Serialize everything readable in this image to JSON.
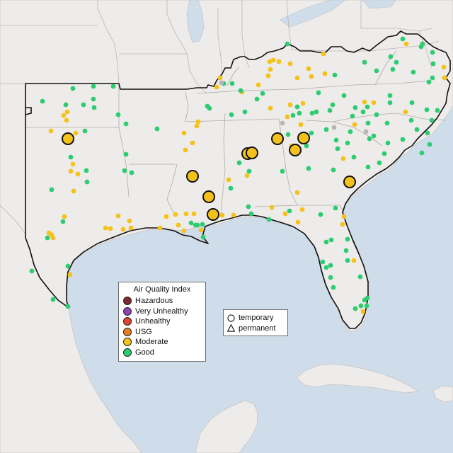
{
  "legend_aqi": {
    "title": "Air Quality Index",
    "items": [
      {
        "label": "Hazardous",
        "color": "#7e2a2a"
      },
      {
        "label": "Very Unhealthy",
        "color": "#8e44ad"
      },
      {
        "label": "Unhealthy",
        "color": "#e2442e"
      },
      {
        "label": "USG",
        "color": "#e67e22"
      },
      {
        "label": "Moderate",
        "color": "#f5c21b"
      },
      {
        "label": "Good",
        "color": "#2ecc71"
      }
    ]
  },
  "legend_type": {
    "items": [
      {
        "label": "temporary",
        "icon": "circle-icon"
      },
      {
        "label": "permanent",
        "icon": "triangle-icon"
      }
    ]
  },
  "colors": {
    "water": "#cfdce9",
    "land": "#eeecea",
    "border": "#111111",
    "state_line": "#b9b6b2"
  }
}
